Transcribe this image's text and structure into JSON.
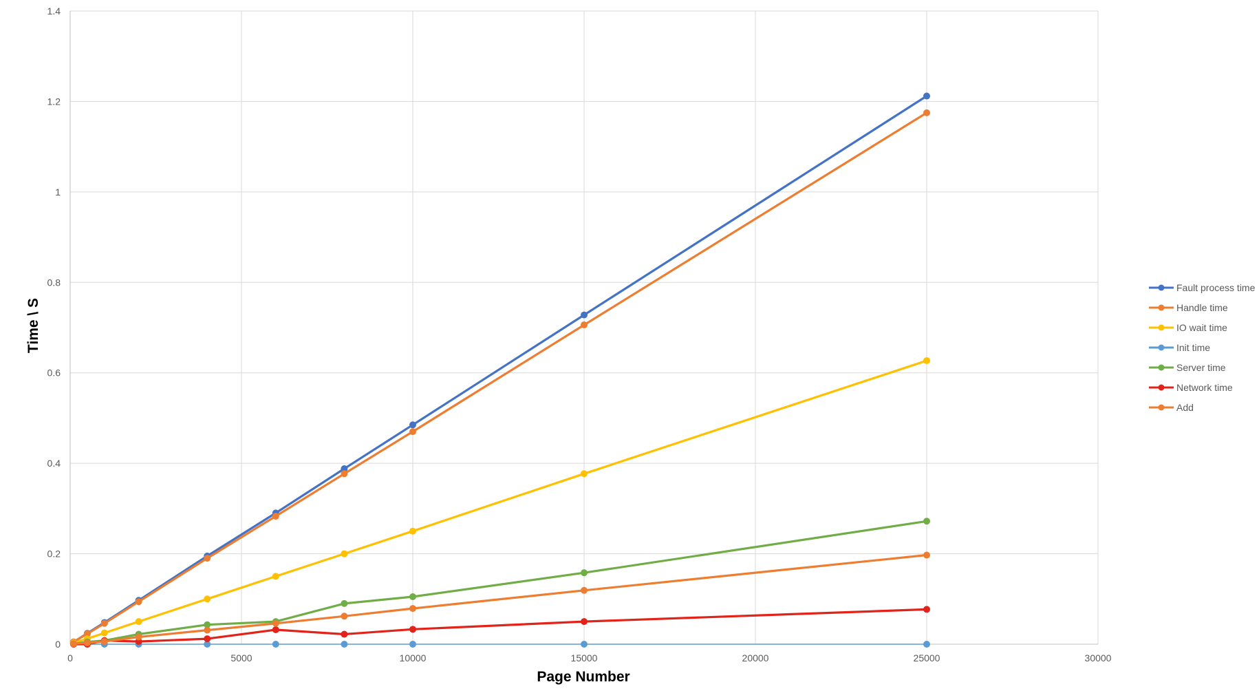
{
  "chart_data": {
    "type": "line",
    "title": "",
    "xlabel": "Page Number",
    "ylabel": "Time \\ S",
    "xlim": [
      0,
      30000
    ],
    "ylim": [
      0,
      1.4
    ],
    "xticks": [
      0,
      5000,
      10000,
      15000,
      20000,
      25000,
      30000
    ],
    "yticks": [
      0,
      0.2,
      0.4,
      0.6,
      0.8,
      1,
      1.2,
      1.4
    ],
    "xtick_labels": [
      "0",
      "5000",
      "10000",
      "15000",
      "20000",
      "25000",
      "30000"
    ],
    "ytick_labels": [
      "0",
      "0.2",
      "0.4",
      "0.6",
      "0.8",
      "1",
      "1.2",
      "1.4"
    ],
    "grid": true,
    "legend_position": "right",
    "x": [
      100,
      500,
      1000,
      2000,
      4000,
      6000,
      8000,
      10000,
      15000,
      25000
    ],
    "series": [
      {
        "name": "Fault process time",
        "color": "#4472C4",
        "values": [
          0.005,
          0.024,
          0.048,
          0.097,
          0.195,
          0.29,
          0.388,
          0.485,
          0.728,
          1.212
        ]
      },
      {
        "name": "Handle time",
        "color": "#ED7D31",
        "values": [
          0.005,
          0.023,
          0.046,
          0.094,
          0.19,
          0.283,
          0.377,
          0.47,
          0.706,
          1.175
        ]
      },
      {
        "name": "IO wait time",
        "color": "#FFC000",
        "values": [
          0.003,
          0.012,
          0.025,
          0.05,
          0.1,
          0.15,
          0.2,
          0.25,
          0.377,
          0.627
        ]
      },
      {
        "name": "Init time",
        "color": "#5B9BD5",
        "values": [
          0,
          0,
          0,
          0,
          0,
          0,
          0,
          0,
          0,
          0
        ]
      },
      {
        "name": "Server time",
        "color": "#70AD47",
        "values": [
          0.001,
          0.005,
          0.008,
          0.022,
          0.043,
          0.05,
          0.09,
          0.105,
          0.158,
          0.272
        ]
      },
      {
        "name": "Network time",
        "color": "#E2231A",
        "values": [
          0,
          0,
          0.008,
          0.006,
          0.012,
          0.032,
          0.022,
          0.033,
          0.05,
          0.077
        ]
      },
      {
        "name": "Add",
        "color": "#ED7D31",
        "values": [
          0.001,
          0.003,
          0.006,
          0.016,
          0.031,
          0.046,
          0.062,
          0.079,
          0.119,
          0.197
        ]
      }
    ]
  }
}
